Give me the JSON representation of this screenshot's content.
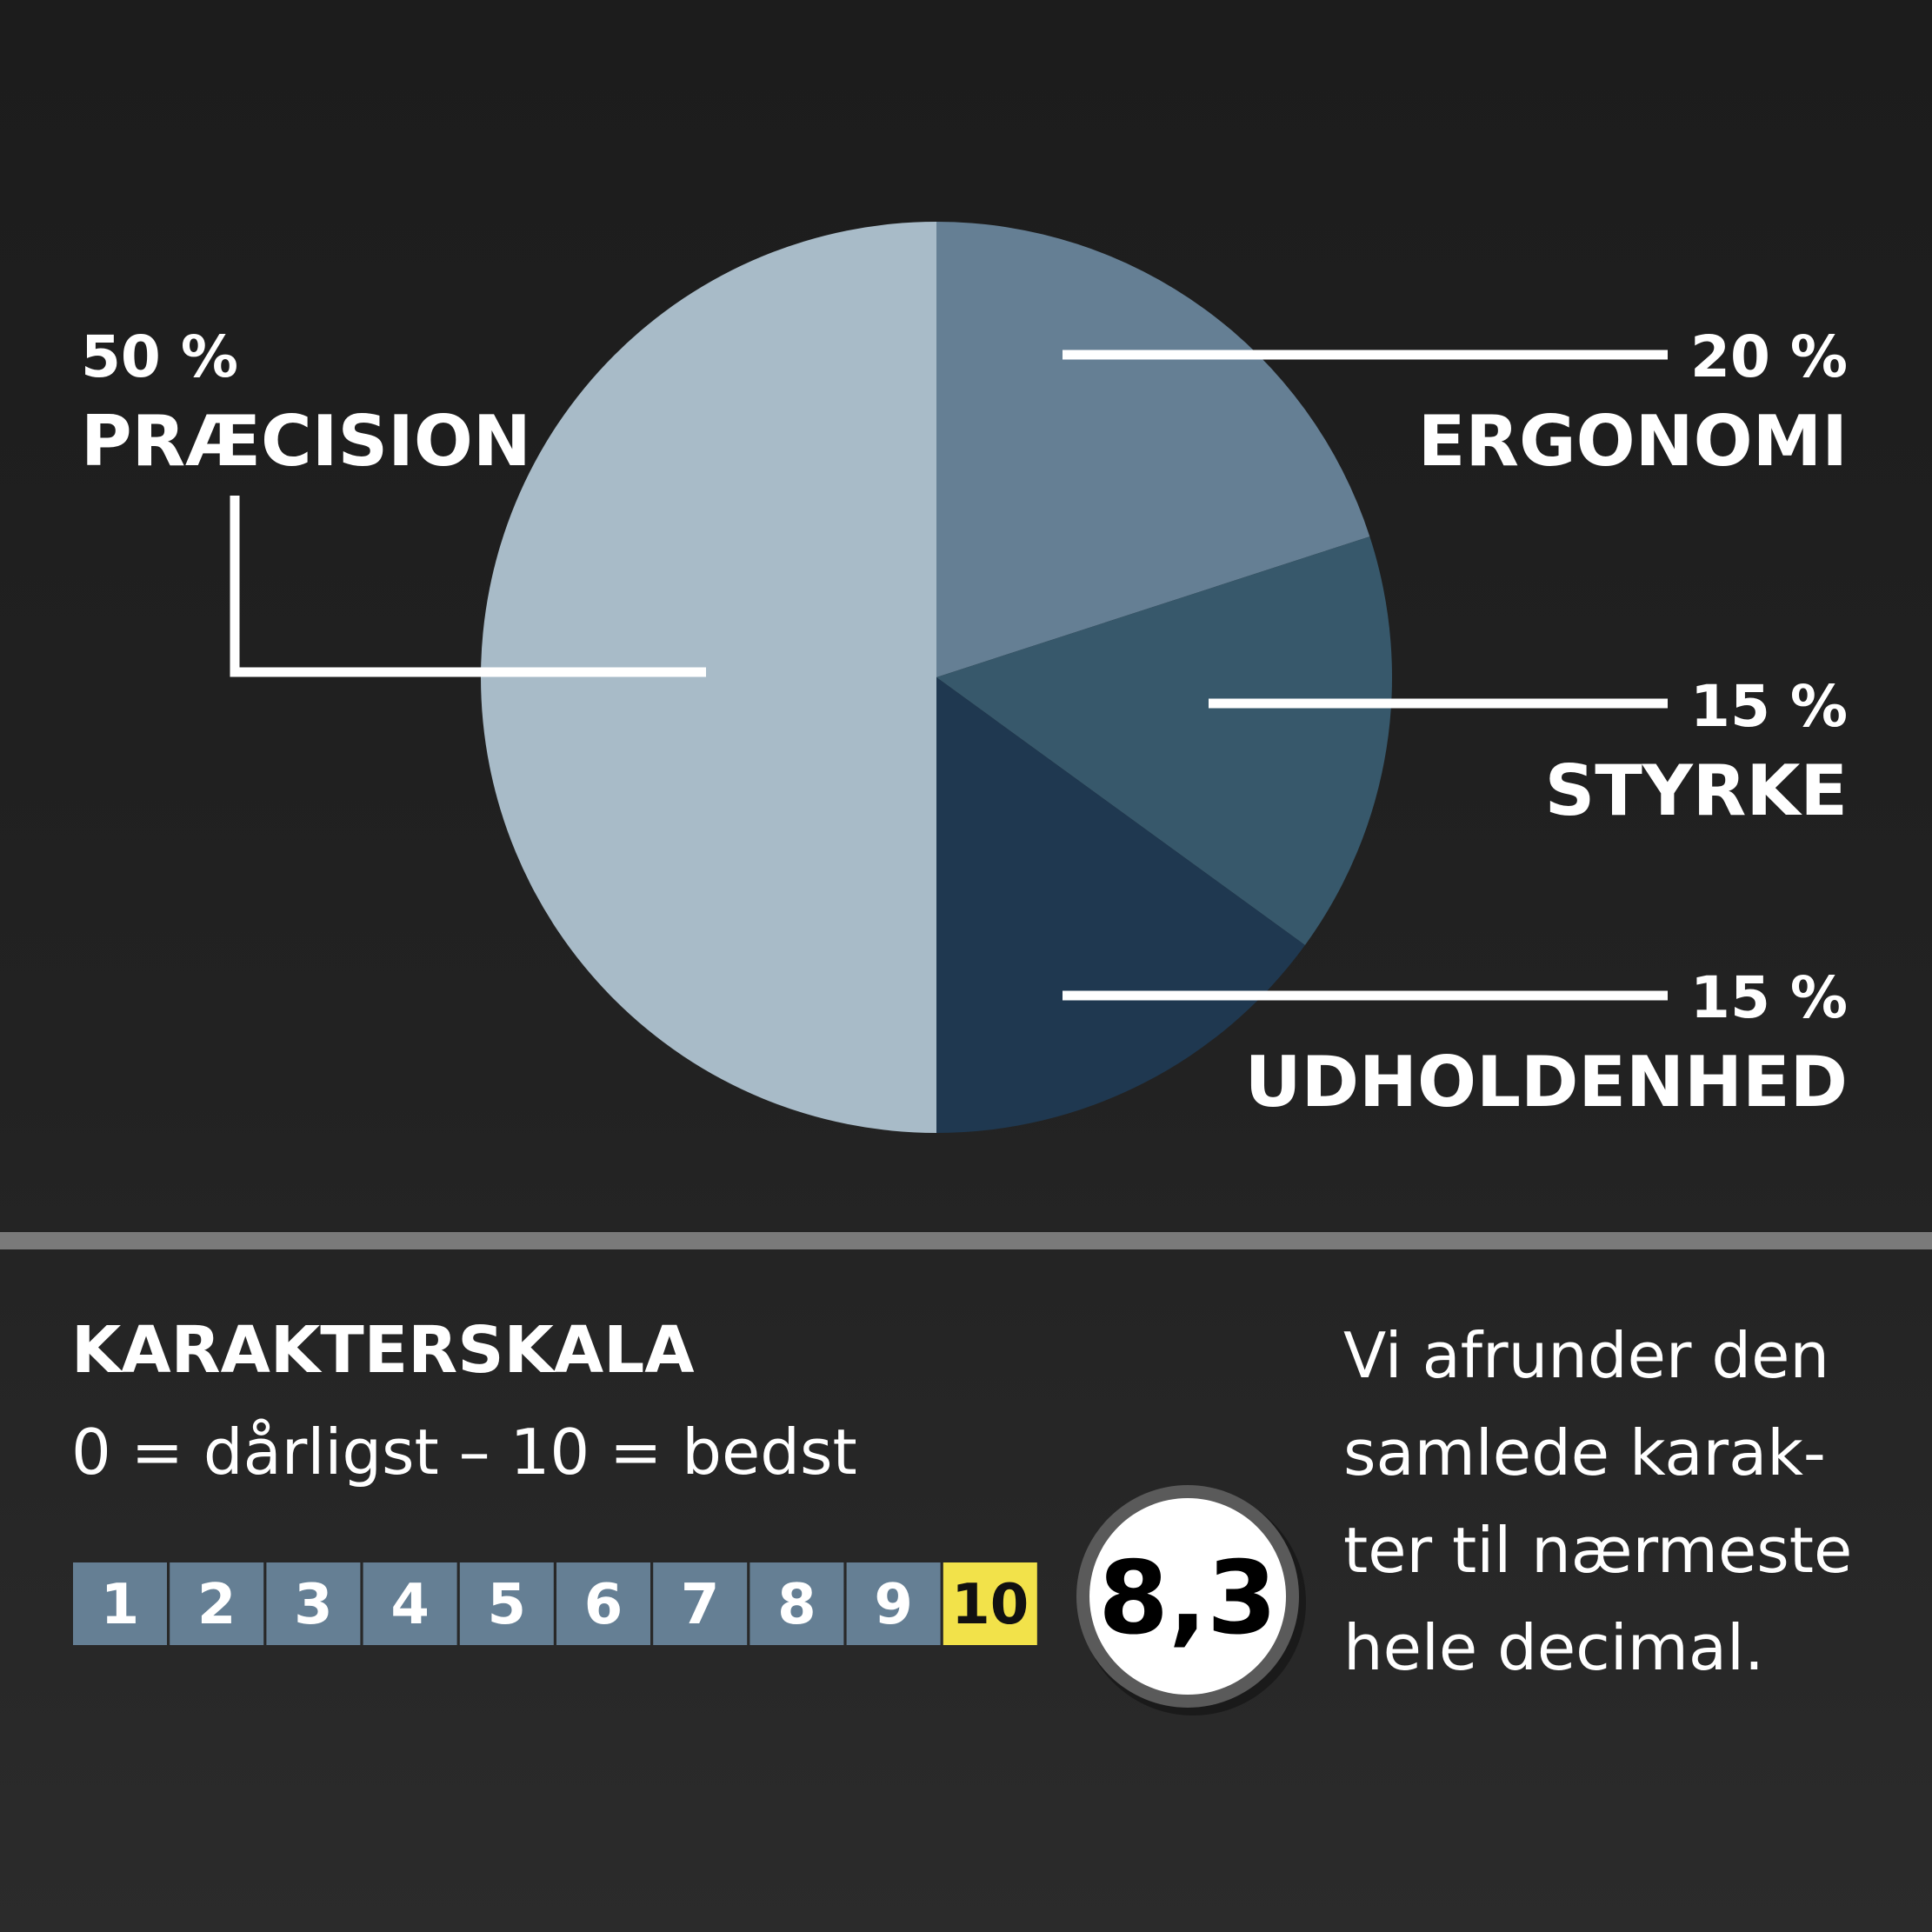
{
  "chart_data": {
    "type": "pie",
    "start": "top",
    "direction": "clockwise",
    "slices": [
      {
        "pct_label": "20 %",
        "name": "ERGONOMI",
        "value": 20,
        "color": "#657f94"
      },
      {
        "pct_label": "15 %",
        "name": "STYRKE",
        "value": 15,
        "color": "#37586b"
      },
      {
        "pct_label": "15 %",
        "name": "UDHOLDENHED",
        "value": 15,
        "color": "#1f3850"
      },
      {
        "pct_label": "50 %",
        "name": "PRÆCISION",
        "value": 50,
        "color": "#a8bbc8"
      }
    ]
  },
  "scale": {
    "title": "KARAKTERSKALA",
    "subtitle": "0 = dårligst – 10 = bedst",
    "boxes": [
      "1",
      "2",
      "3",
      "4",
      "5",
      "6",
      "7",
      "8",
      "9",
      "10"
    ],
    "highlight": "10",
    "box_color": "#657f94",
    "highlight_color": "#f2e24a"
  },
  "score": {
    "value": "8,3"
  },
  "note": {
    "lines": [
      "Vi afrunder den",
      "samlede karak-",
      "ter til nærmeste",
      "hele decimal."
    ]
  }
}
